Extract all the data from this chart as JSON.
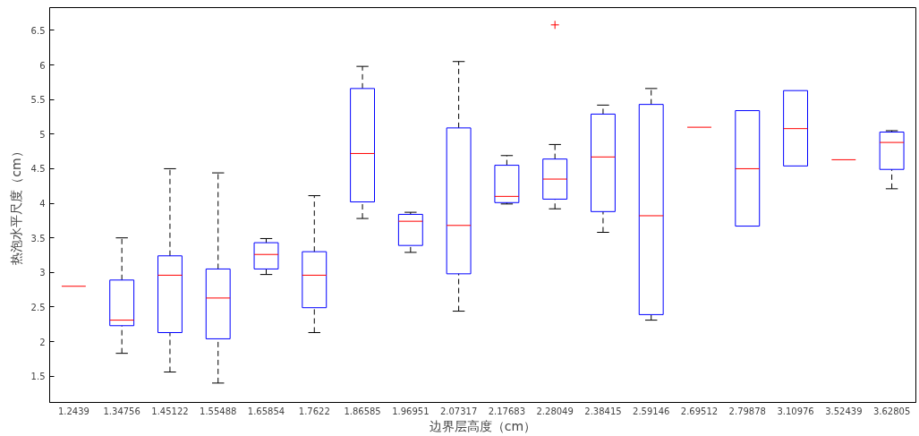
{
  "chart_data": {
    "type": "box",
    "xlabel": "边界层高度（cm）",
    "ylabel": "热泡水平尺度（cm）",
    "categories": [
      "1.2439",
      "1.34756",
      "1.45122",
      "1.55488",
      "1.65854",
      "1.7622",
      "1.86585",
      "1.96951",
      "2.07317",
      "2.17683",
      "2.28049",
      "2.38415",
      "2.59146",
      "2.69512",
      "2.79878",
      "3.10976",
      "3.52439",
      "3.62805"
    ],
    "boxes": [
      {
        "low": 2.8,
        "q1": 2.8,
        "median": 2.8,
        "q3": 2.8,
        "high": 2.8
      },
      {
        "low": 1.83,
        "q1": 2.23,
        "median": 2.31,
        "q3": 2.89,
        "high": 3.5
      },
      {
        "low": 1.56,
        "q1": 2.13,
        "median": 2.96,
        "q3": 3.24,
        "high": 4.5
      },
      {
        "low": 1.4,
        "q1": 2.04,
        "median": 2.63,
        "q3": 3.05,
        "high": 4.44
      },
      {
        "low": 2.97,
        "q1": 3.05,
        "median": 3.26,
        "q3": 3.43,
        "high": 3.49
      },
      {
        "low": 2.13,
        "q1": 2.49,
        "median": 2.96,
        "q3": 3.3,
        "high": 4.11
      },
      {
        "low": 3.78,
        "q1": 4.02,
        "median": 4.72,
        "q3": 5.66,
        "high": 5.98
      },
      {
        "low": 3.29,
        "q1": 3.39,
        "median": 3.74,
        "q3": 3.84,
        "high": 3.87
      },
      {
        "low": 2.44,
        "q1": 2.98,
        "median": 3.68,
        "q3": 5.09,
        "high": 6.05
      },
      {
        "low": 3.99,
        "q1": 4.01,
        "median": 4.1,
        "q3": 4.55,
        "high": 4.69
      },
      {
        "low": 3.92,
        "q1": 4.06,
        "median": 4.35,
        "q3": 4.64,
        "high": 4.85,
        "outliers": [
          6.58
        ]
      },
      {
        "low": 3.58,
        "q1": 3.88,
        "median": 4.67,
        "q3": 5.29,
        "high": 5.42
      },
      {
        "low": 2.31,
        "q1": 2.39,
        "median": 3.82,
        "q3": 5.43,
        "high": 5.66
      },
      {
        "low": 5.1,
        "q1": 5.1,
        "median": 5.1,
        "q3": 5.1,
        "high": 5.1
      },
      {
        "low": 3.67,
        "q1": 3.67,
        "median": 4.5,
        "q3": 5.34,
        "high": 5.34
      },
      {
        "low": 4.54,
        "q1": 4.54,
        "median": 5.08,
        "q3": 5.63,
        "high": 5.63
      },
      {
        "low": 4.63,
        "q1": 4.63,
        "median": 4.63,
        "q3": 4.63,
        "high": 4.63
      },
      {
        "low": 4.21,
        "q1": 4.49,
        "median": 4.88,
        "q3": 5.03,
        "high": 5.05
      }
    ],
    "ylim": [
      1.12,
      6.83
    ],
    "yticks": [
      1.5,
      2,
      2.5,
      3,
      3.5,
      4,
      4.5,
      5,
      5.5,
      6,
      6.5
    ],
    "grid": false
  }
}
